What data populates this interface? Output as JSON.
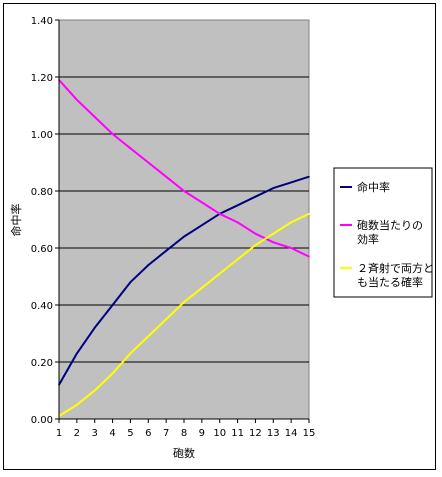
{
  "chart_data": {
    "type": "line",
    "xlabel": "砲数",
    "ylabel": "命中率",
    "ylim": [
      0,
      1.4
    ],
    "y_ticks": [
      "0.00",
      "0.20",
      "0.40",
      "0.60",
      "0.80",
      "1.00",
      "1.20",
      "1.40"
    ],
    "x": [
      1,
      2,
      3,
      4,
      5,
      6,
      7,
      8,
      9,
      10,
      11,
      12,
      13,
      14,
      15
    ],
    "grid": true,
    "plot_background": "#c0c0c0",
    "legend_position": "right",
    "series": [
      {
        "name": "命中率",
        "color": "#000080",
        "values": [
          0.12,
          0.23,
          0.32,
          0.4,
          0.48,
          0.54,
          0.59,
          0.64,
          0.68,
          0.72,
          0.75,
          0.78,
          0.81,
          0.83,
          0.85
        ]
      },
      {
        "name": "砲数当たりの効率",
        "color": "#ff00ff",
        "values": [
          1.19,
          1.12,
          1.06,
          1.0,
          0.95,
          0.9,
          0.85,
          0.8,
          0.76,
          0.72,
          0.69,
          0.65,
          0.62,
          0.6,
          0.57
        ]
      },
      {
        "name": "２斉射で両方とも当たる確率",
        "color": "#ffff00",
        "values": [
          0.01,
          0.05,
          0.1,
          0.16,
          0.23,
          0.29,
          0.35,
          0.41,
          0.46,
          0.51,
          0.56,
          0.61,
          0.65,
          0.69,
          0.72
        ]
      }
    ],
    "legend_lines": [
      [
        "命中率"
      ],
      [
        "砲数当たりの",
        "効率"
      ],
      [
        "２斉射で両方と",
        "も当たる確率"
      ]
    ]
  }
}
